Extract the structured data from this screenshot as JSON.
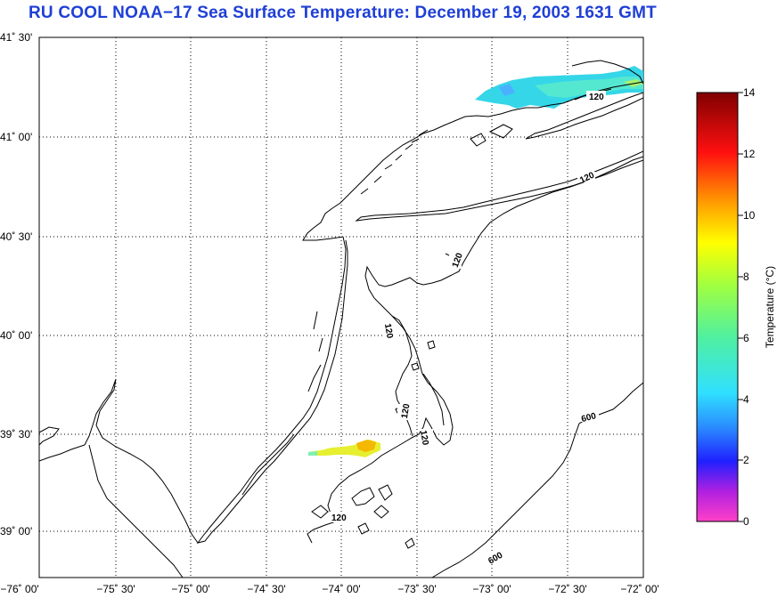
{
  "title": "RU COOL  NOAA−17  Sea Surface Temperature:  December 19, 2003 1631 GMT",
  "map": {
    "lat_labels": [
      "41˚ 30'",
      "41˚ 00'",
      "40˚ 30'",
      "40˚ 00'",
      "39˚ 30'",
      "39˚ 00'"
    ],
    "lon_labels": [
      "−76˚ 00'",
      "−75˚ 30'",
      "−75˚ 00'",
      "−74˚ 30'",
      "−74˚ 00'",
      "−73˚ 30'",
      "−73˚ 00'",
      "−72˚ 30'",
      "−72˚ 00'"
    ],
    "contour_labels": [
      "120",
      "120",
      "120",
      "120",
      "120",
      "120",
      "120",
      "600",
      "600"
    ]
  },
  "colorbar": {
    "label": "Temperature (°C)",
    "ticks": [
      "14",
      "12",
      "10",
      "8",
      "6",
      "4",
      "2",
      "0"
    ],
    "min": 0,
    "max": 14
  }
}
